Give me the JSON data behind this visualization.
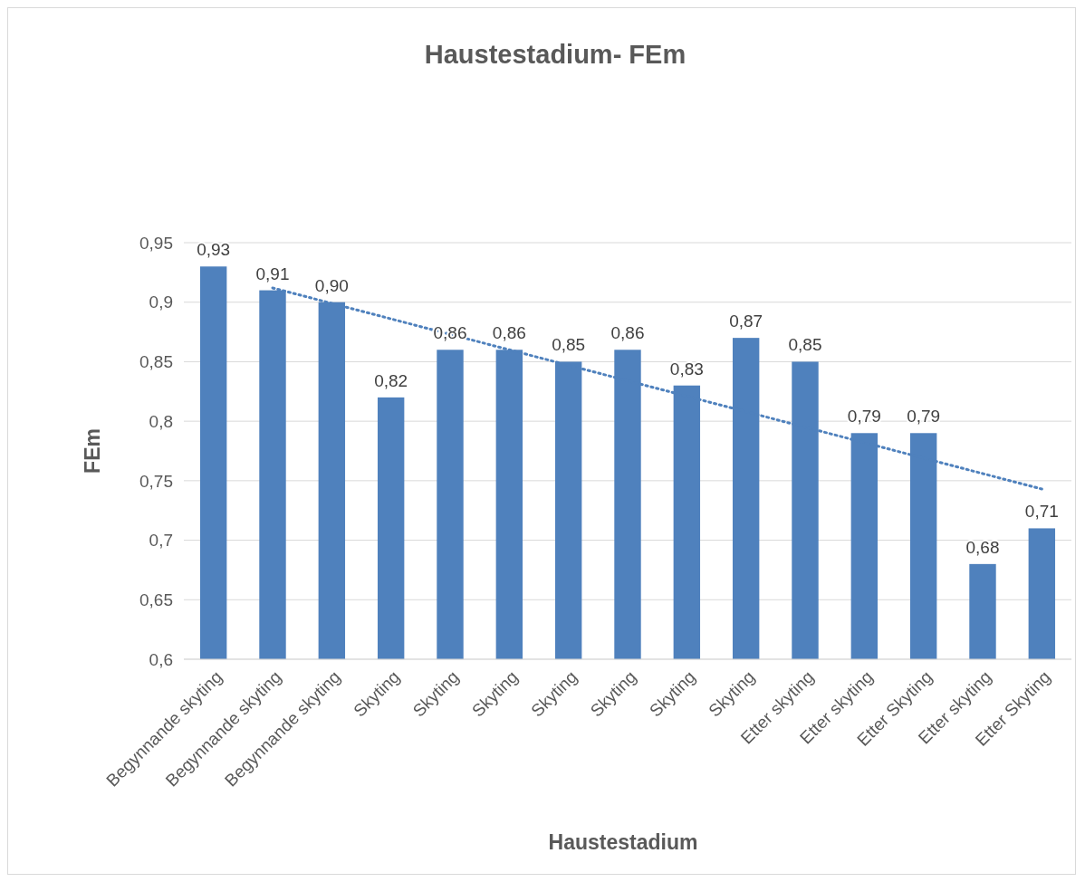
{
  "chart_data": {
    "type": "bar",
    "title": "Haustestadium- FEm",
    "xlabel": "Haustestadium",
    "ylabel": "FEm",
    "categories": [
      "Begynnande skyting",
      "Begynnande skyting",
      "Begynnande skyting",
      "Skyting",
      "Skyting",
      "Skyting",
      "Skyting",
      "Skyting",
      "Skyting",
      "Skyting",
      "Etter skyting",
      "Etter skyting",
      "Etter Skyting",
      "Etter skyting",
      "Etter Skyting"
    ],
    "series": [
      {
        "color": "#4f81bd",
        "values": [
          0.93,
          0.91,
          0.9,
          0.82,
          0.86,
          0.86,
          0.85,
          0.86,
          0.83,
          0.87,
          0.85,
          0.79,
          0.79,
          0.68,
          0.71
        ],
        "value_labels": [
          "0,93",
          "0,91",
          "0,90",
          "0,82",
          "0,86",
          "0,86",
          "0,85",
          "0,86",
          "0,83",
          "0,87",
          "0,85",
          "0,79",
          "0,79",
          "0,68",
          "0,71"
        ]
      },
      {
        "type": "line",
        "color": "#4f81bd",
        "line_style": "dotted",
        "marker": "none",
        "values": [
          null,
          0.912,
          0.899,
          0.886,
          0.873,
          0.86,
          0.847,
          0.834,
          0.821,
          0.808,
          0.795,
          0.782,
          0.769,
          0.756,
          0.743
        ]
      }
    ],
    "ylim": [
      0.6,
      0.95
    ],
    "yticks": [
      {
        "value": 0.6,
        "label": "0,6"
      },
      {
        "value": 0.65,
        "label": "0,65"
      },
      {
        "value": 0.7,
        "label": "0,7"
      },
      {
        "value": 0.75,
        "label": "0,75"
      },
      {
        "value": 0.8,
        "label": "0,8"
      },
      {
        "value": 0.85,
        "label": "0,85"
      },
      {
        "value": 0.9,
        "label": "0,9"
      },
      {
        "value": 0.95,
        "label": "0,95"
      }
    ],
    "grid": "y"
  }
}
